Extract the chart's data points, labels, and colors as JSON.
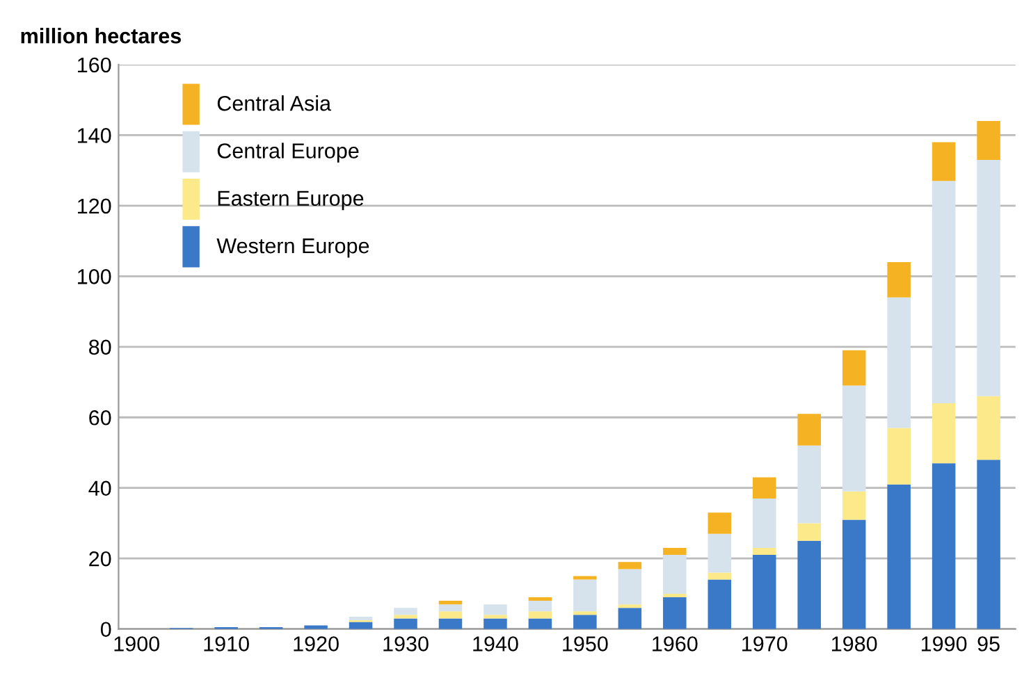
{
  "chart_data": {
    "type": "bar",
    "stacked": true,
    "ylabel": "million hectares",
    "x": [
      1905,
      1910,
      1915,
      1920,
      1925,
      1930,
      1935,
      1940,
      1945,
      1950,
      1955,
      1960,
      1965,
      1970,
      1975,
      1980,
      1985,
      1990,
      1995
    ],
    "series": [
      {
        "name": "Western Europe",
        "color": "#3a78c8",
        "values": [
          0.3,
          0.5,
          0.5,
          1,
          2,
          3,
          3,
          3,
          3,
          4,
          6,
          9,
          14,
          21,
          25,
          31,
          41,
          47,
          48
        ]
      },
      {
        "name": "Eastern Europe",
        "color": "#fbe98a",
        "values": [
          0,
          0,
          0,
          0,
          0.5,
          1,
          2,
          1,
          2,
          1,
          1,
          1,
          2,
          2,
          5,
          8,
          16,
          17,
          18
        ]
      },
      {
        "name": "Central Europe",
        "color": "#d6e3ec",
        "values": [
          0,
          0,
          0,
          0,
          1,
          2,
          2,
          3,
          3,
          9,
          10,
          11,
          11,
          14,
          22,
          30,
          37,
          63,
          67
        ]
      },
      {
        "name": "Central Asia",
        "color": "#f5b324",
        "values": [
          0,
          0,
          0,
          0,
          0,
          0,
          1,
          0,
          1,
          1,
          2,
          2,
          6,
          6,
          9,
          10,
          10,
          11,
          11
        ]
      }
    ],
    "xlim": [
      1898,
      1998
    ],
    "xticks": [
      1900,
      1910,
      1920,
      1930,
      1940,
      1950,
      1960,
      1970,
      1980,
      1990,
      {
        "value": 1995,
        "label": "95"
      }
    ],
    "ylim": [
      0,
      160
    ],
    "yticks": [
      0,
      20,
      40,
      60,
      80,
      100,
      120,
      140,
      160
    ],
    "grid": "y",
    "legend": "top left"
  }
}
